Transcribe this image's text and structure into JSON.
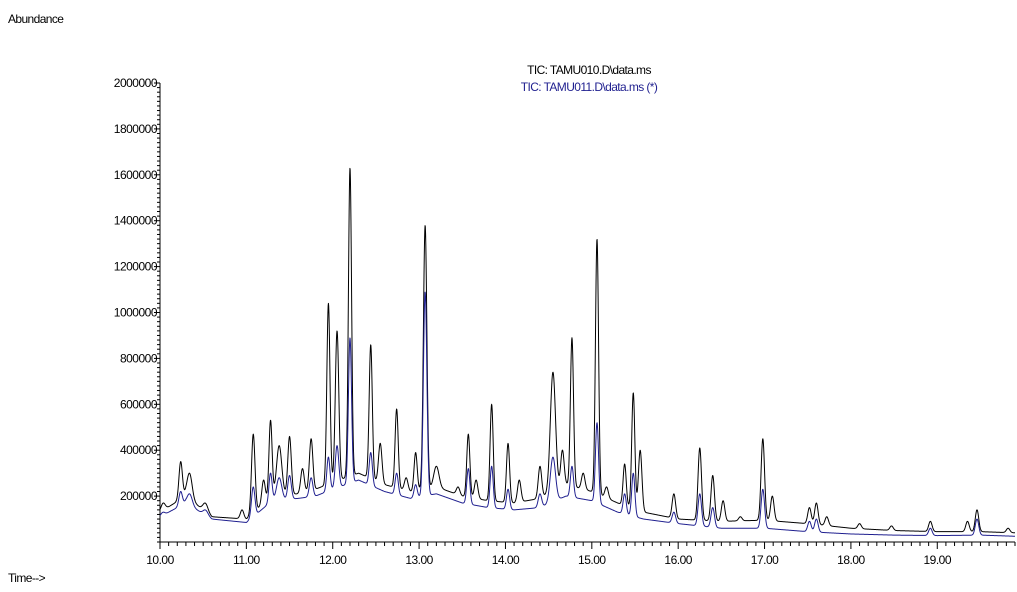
{
  "chart_data": {
    "type": "line",
    "title": "",
    "ylabel": "Abundance",
    "xlabel": "Time-->",
    "xlim": [
      10.0,
      19.9
    ],
    "ylim": [
      0,
      2000000
    ],
    "grid": false,
    "legend_position": "top",
    "x_ticks": [
      "10.00",
      "11.00",
      "12.00",
      "13.00",
      "14.00",
      "15.00",
      "16.00",
      "17.00",
      "18.00",
      "19.00"
    ],
    "y_ticks": [
      "200000",
      "400000",
      "600000",
      "800000",
      "1000000",
      "1200000",
      "1400000",
      "1600000",
      "1800000",
      "2000000"
    ],
    "series": [
      {
        "name": "TIC: TAMU010.D\\data.ms",
        "color": "#000000",
        "baseline": [
          [
            10.0,
            130000
          ],
          [
            10.3,
            200000
          ],
          [
            10.6,
            110000
          ],
          [
            11.0,
            100000
          ],
          [
            11.3,
            200000
          ],
          [
            11.6,
            210000
          ],
          [
            11.8,
            230000
          ],
          [
            12.0,
            260000
          ],
          [
            12.3,
            300000
          ],
          [
            12.6,
            250000
          ],
          [
            12.9,
            220000
          ],
          [
            13.2,
            240000
          ],
          [
            13.5,
            200000
          ],
          [
            13.8,
            180000
          ],
          [
            14.1,
            170000
          ],
          [
            14.4,
            190000
          ],
          [
            14.7,
            250000
          ],
          [
            15.0,
            220000
          ],
          [
            15.3,
            170000
          ],
          [
            15.6,
            130000
          ],
          [
            16.0,
            100000
          ],
          [
            16.5,
            90000
          ],
          [
            17.0,
            95000
          ],
          [
            17.5,
            80000
          ],
          [
            18.0,
            60000
          ],
          [
            18.5,
            50000
          ],
          [
            19.0,
            45000
          ],
          [
            19.5,
            45000
          ],
          [
            19.9,
            40000
          ]
        ],
        "peaks": [
          [
            10.04,
            170000,
            0.025
          ],
          [
            10.24,
            350000,
            0.02
          ],
          [
            10.34,
            300000,
            0.03
          ],
          [
            10.52,
            170000,
            0.03
          ],
          [
            10.95,
            140000,
            0.02
          ],
          [
            11.08,
            470000,
            0.02
          ],
          [
            11.2,
            270000,
            0.02
          ],
          [
            11.28,
            530000,
            0.018
          ],
          [
            11.38,
            420000,
            0.03
          ],
          [
            11.5,
            460000,
            0.02
          ],
          [
            11.65,
            320000,
            0.02
          ],
          [
            11.75,
            450000,
            0.02
          ],
          [
            11.95,
            1040000,
            0.018
          ],
          [
            12.05,
            920000,
            0.02
          ],
          [
            12.2,
            1630000,
            0.018
          ],
          [
            12.44,
            860000,
            0.018
          ],
          [
            12.55,
            430000,
            0.02
          ],
          [
            12.74,
            580000,
            0.018
          ],
          [
            12.85,
            280000,
            0.02
          ],
          [
            12.96,
            390000,
            0.018
          ],
          [
            13.07,
            1380000,
            0.02
          ],
          [
            13.2,
            330000,
            0.03
          ],
          [
            13.45,
            240000,
            0.02
          ],
          [
            13.57,
            470000,
            0.018
          ],
          [
            13.66,
            270000,
            0.02
          ],
          [
            13.84,
            600000,
            0.018
          ],
          [
            14.03,
            430000,
            0.018
          ],
          [
            14.16,
            270000,
            0.02
          ],
          [
            14.4,
            330000,
            0.02
          ],
          [
            14.55,
            740000,
            0.03
          ],
          [
            14.66,
            400000,
            0.02
          ],
          [
            14.77,
            890000,
            0.018
          ],
          [
            14.9,
            300000,
            0.02
          ],
          [
            15.06,
            1320000,
            0.018
          ],
          [
            15.17,
            240000,
            0.02
          ],
          [
            15.38,
            340000,
            0.018
          ],
          [
            15.48,
            650000,
            0.018
          ],
          [
            15.56,
            400000,
            0.02
          ],
          [
            15.95,
            210000,
            0.02
          ],
          [
            16.25,
            410000,
            0.02
          ],
          [
            16.4,
            290000,
            0.02
          ],
          [
            16.52,
            180000,
            0.02
          ],
          [
            16.72,
            110000,
            0.02
          ],
          [
            16.98,
            450000,
            0.02
          ],
          [
            17.09,
            200000,
            0.02
          ],
          [
            17.52,
            150000,
            0.02
          ],
          [
            17.6,
            170000,
            0.02
          ],
          [
            17.72,
            110000,
            0.02
          ],
          [
            18.1,
            80000,
            0.02
          ],
          [
            18.47,
            70000,
            0.02
          ],
          [
            18.92,
            90000,
            0.02
          ],
          [
            19.35,
            90000,
            0.02
          ],
          [
            19.46,
            140000,
            0.02
          ],
          [
            19.82,
            60000,
            0.02
          ]
        ]
      },
      {
        "name": "TIC: TAMU011.D\\data.ms (*)",
        "color": "#1f1f8f",
        "baseline": [
          [
            10.0,
            110000
          ],
          [
            10.3,
            170000
          ],
          [
            10.6,
            100000
          ],
          [
            11.0,
            85000
          ],
          [
            11.3,
            180000
          ],
          [
            11.6,
            190000
          ],
          [
            11.8,
            200000
          ],
          [
            12.0,
            230000
          ],
          [
            12.3,
            270000
          ],
          [
            12.6,
            220000
          ],
          [
            12.9,
            190000
          ],
          [
            13.2,
            210000
          ],
          [
            13.5,
            170000
          ],
          [
            13.8,
            150000
          ],
          [
            14.1,
            140000
          ],
          [
            14.4,
            150000
          ],
          [
            14.7,
            200000
          ],
          [
            15.0,
            180000
          ],
          [
            15.3,
            130000
          ],
          [
            15.6,
            100000
          ],
          [
            16.0,
            80000
          ],
          [
            16.5,
            60000
          ],
          [
            17.0,
            60000
          ],
          [
            17.5,
            45000
          ],
          [
            18.0,
            35000
          ],
          [
            18.5,
            30000
          ],
          [
            19.0,
            28000
          ],
          [
            19.5,
            30000
          ],
          [
            19.9,
            25000
          ]
        ],
        "peaks": [
          [
            10.04,
            130000,
            0.025
          ],
          [
            10.24,
            220000,
            0.02
          ],
          [
            10.34,
            210000,
            0.03
          ],
          [
            10.52,
            140000,
            0.03
          ],
          [
            11.08,
            240000,
            0.02
          ],
          [
            11.28,
            300000,
            0.018
          ],
          [
            11.38,
            280000,
            0.03
          ],
          [
            11.5,
            290000,
            0.02
          ],
          [
            11.75,
            280000,
            0.02
          ],
          [
            11.95,
            370000,
            0.018
          ],
          [
            12.05,
            420000,
            0.02
          ],
          [
            12.2,
            890000,
            0.018
          ],
          [
            12.44,
            390000,
            0.018
          ],
          [
            12.74,
            300000,
            0.018
          ],
          [
            12.96,
            250000,
            0.018
          ],
          [
            13.07,
            1090000,
            0.02
          ],
          [
            13.57,
            320000,
            0.018
          ],
          [
            13.84,
            330000,
            0.018
          ],
          [
            14.03,
            230000,
            0.018
          ],
          [
            14.4,
            210000,
            0.02
          ],
          [
            14.55,
            370000,
            0.03
          ],
          [
            14.77,
            330000,
            0.018
          ],
          [
            15.06,
            520000,
            0.018
          ],
          [
            15.38,
            210000,
            0.018
          ],
          [
            15.48,
            300000,
            0.018
          ],
          [
            15.95,
            130000,
            0.02
          ],
          [
            16.25,
            210000,
            0.02
          ],
          [
            16.4,
            150000,
            0.02
          ],
          [
            16.98,
            230000,
            0.02
          ],
          [
            17.52,
            90000,
            0.02
          ],
          [
            17.6,
            100000,
            0.02
          ],
          [
            18.92,
            60000,
            0.02
          ],
          [
            19.46,
            100000,
            0.02
          ]
        ]
      }
    ]
  }
}
